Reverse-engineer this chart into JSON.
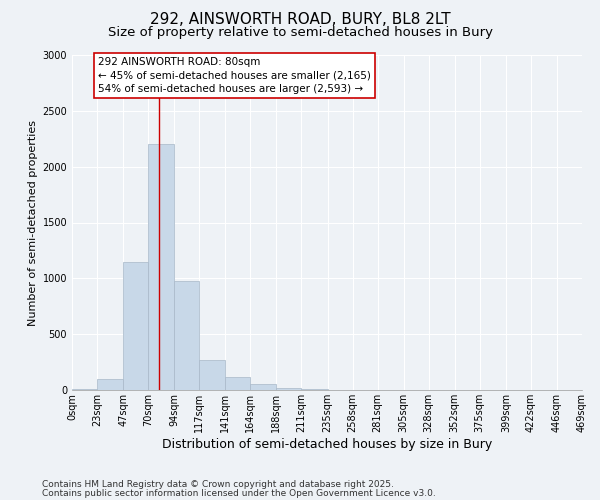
{
  "title": "292, AINSWORTH ROAD, BURY, BL8 2LT",
  "subtitle": "Size of property relative to semi-detached houses in Bury",
  "xlabel": "Distribution of semi-detached houses by size in Bury",
  "ylabel": "Number of semi-detached properties",
  "bin_edges": [
    0,
    23,
    47,
    70,
    94,
    117,
    141,
    164,
    188,
    211,
    235,
    258,
    281,
    305,
    328,
    352,
    375,
    399,
    422,
    446,
    469
  ],
  "bin_labels": [
    "0sqm",
    "23sqm",
    "47sqm",
    "70sqm",
    "94sqm",
    "117sqm",
    "141sqm",
    "164sqm",
    "188sqm",
    "211sqm",
    "235sqm",
    "258sqm",
    "281sqm",
    "305sqm",
    "328sqm",
    "352sqm",
    "375sqm",
    "399sqm",
    "422sqm",
    "446sqm",
    "469sqm"
  ],
  "bar_heights": [
    5,
    100,
    1150,
    2200,
    980,
    270,
    120,
    50,
    20,
    8,
    3,
    2,
    1,
    1,
    0,
    0,
    0,
    0,
    0,
    0
  ],
  "bar_color": "#c8d8e8",
  "bar_edgecolor": "#a8b8c8",
  "property_size": 80,
  "property_line_color": "#cc0000",
  "ylim": [
    0,
    3000
  ],
  "yticks": [
    0,
    500,
    1000,
    1500,
    2000,
    2500,
    3000
  ],
  "annotation_text": "292 AINSWORTH ROAD: 80sqm\n← 45% of semi-detached houses are smaller (2,165)\n54% of semi-detached houses are larger (2,593) →",
  "annotation_box_facecolor": "#ffffff",
  "annotation_box_edgecolor": "#cc0000",
  "footnote1": "Contains HM Land Registry data © Crown copyright and database right 2025.",
  "footnote2": "Contains public sector information licensed under the Open Government Licence v3.0.",
  "background_color": "#eef2f6",
  "grid_color": "#ffffff",
  "title_fontsize": 11,
  "subtitle_fontsize": 9.5,
  "xlabel_fontsize": 9,
  "ylabel_fontsize": 8,
  "tick_fontsize": 7,
  "annotation_fontsize": 7.5,
  "footnote_fontsize": 6.5
}
